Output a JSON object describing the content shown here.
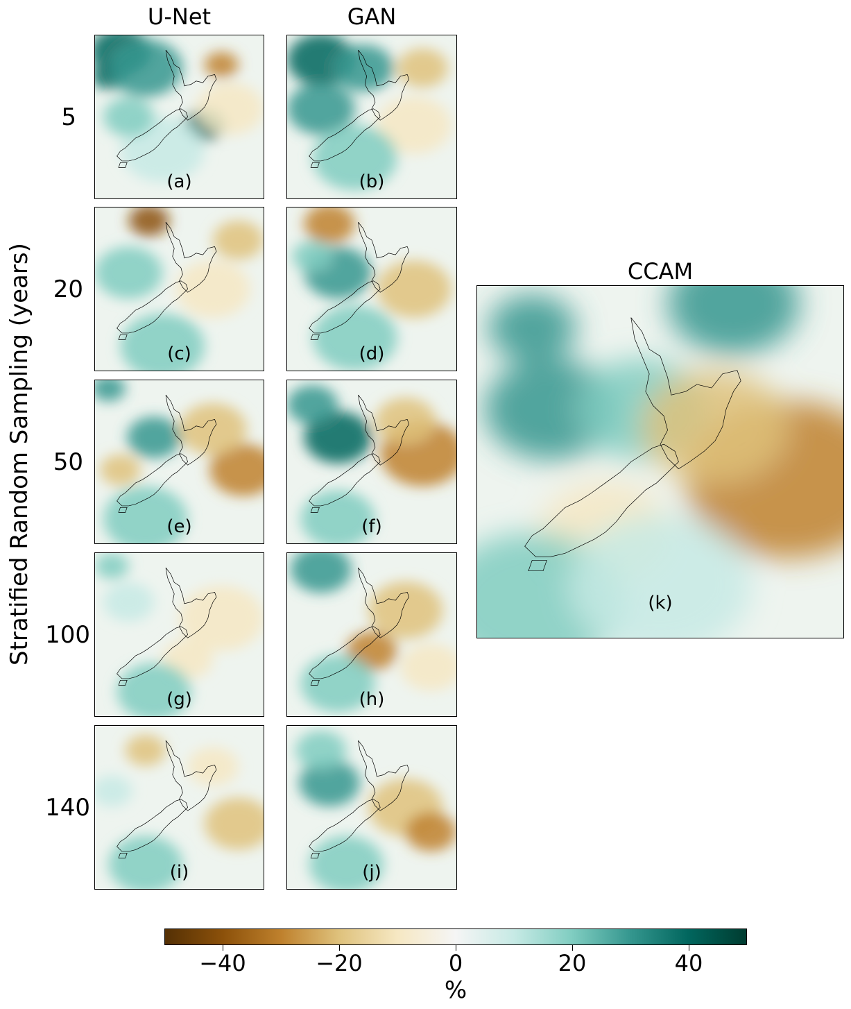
{
  "columns": {
    "unet": "U-Net",
    "gan": "GAN",
    "ccam": "CCAM"
  },
  "y_axis_label": "Stratified Random Sampling (years)",
  "rows": [
    "5",
    "20",
    "50",
    "100",
    "140"
  ],
  "panel_labels": [
    "(a)",
    "(b)",
    "(c)",
    "(d)",
    "(e)",
    "(f)",
    "(g)",
    "(h)",
    "(i)",
    "(j)",
    "(k)"
  ],
  "colorbar": {
    "unit": "%",
    "ticks": [
      "−40",
      "−20",
      "0",
      "20",
      "40"
    ],
    "tick_values": [
      -40,
      -20,
      0,
      20,
      40
    ],
    "range": [
      -50,
      50
    ],
    "colors": [
      "#543005",
      "#8c510a",
      "#bf812d",
      "#dfc27d",
      "#f6e8c3",
      "#f5f5f5",
      "#c7eae5",
      "#80cdc1",
      "#35978f",
      "#01665e",
      "#003c30"
    ]
  },
  "map_region": "New Zealand"
}
